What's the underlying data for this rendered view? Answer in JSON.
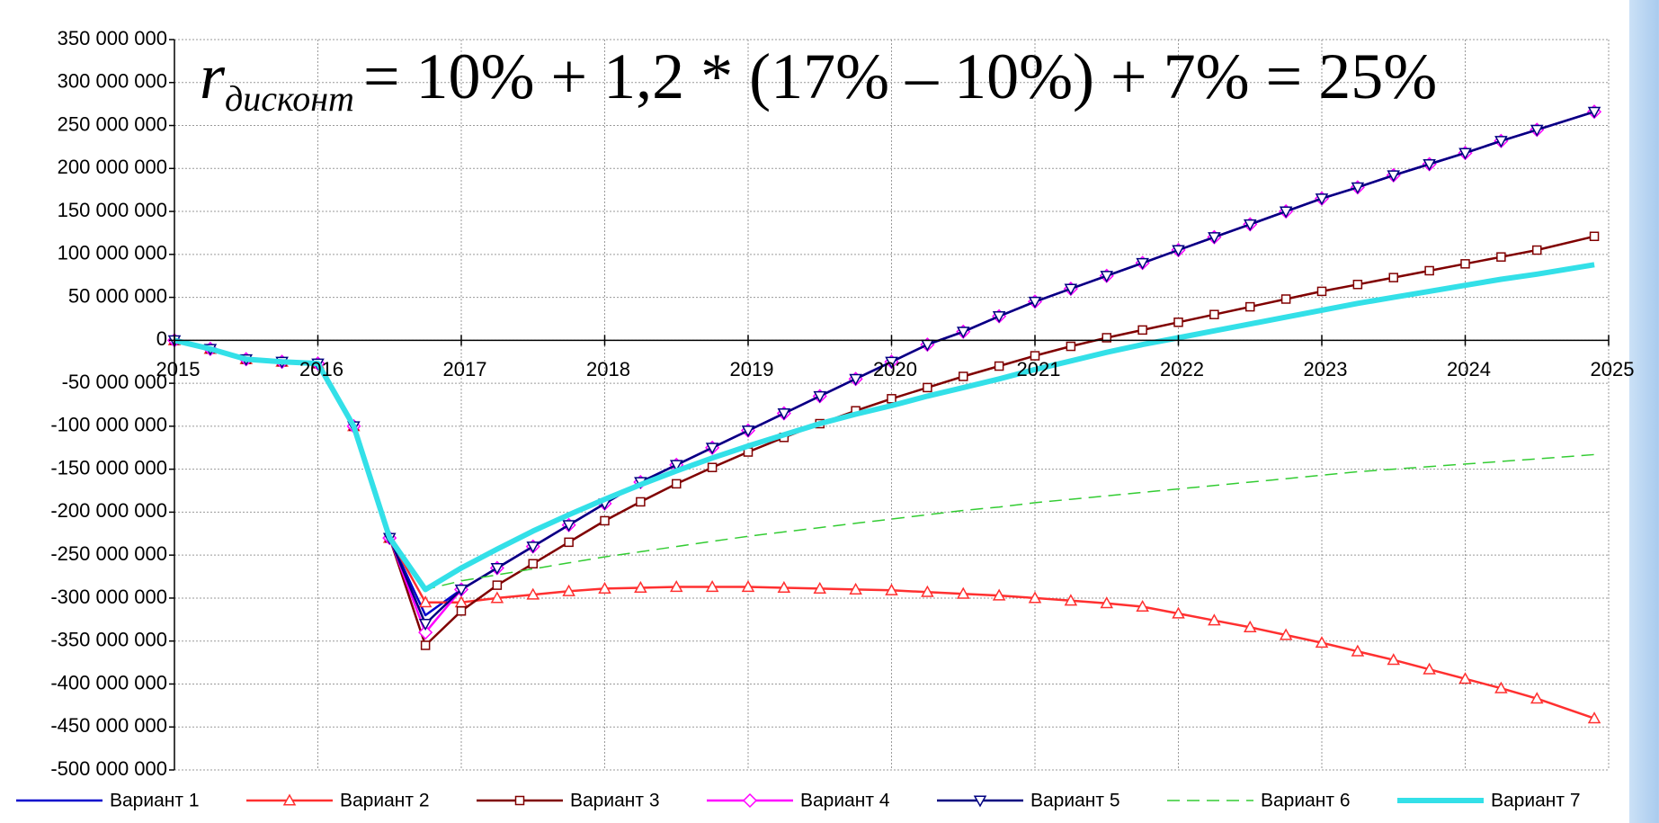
{
  "chart_data": {
    "type": "line",
    "annotations": [
      {
        "symbol": "r",
        "subscript": "дисконт",
        "text": "= 10% + 1,2 * (17% – 10%) + 7% = 25%"
      }
    ],
    "xlim": [
      2015,
      2025
    ],
    "xticks": [
      2015,
      2016,
      2017,
      2018,
      2019,
      2020,
      2021,
      2022,
      2023,
      2024,
      2025
    ],
    "ylim": [
      -500000000.0,
      350000000.0
    ],
    "yticks": [
      {
        "value": 350000000.0,
        "label": "350 000 000"
      },
      {
        "value": 300000000.0,
        "label": "300 000 000"
      },
      {
        "value": 250000000.0,
        "label": "250 000 000"
      },
      {
        "value": 200000000.0,
        "label": "200 000 000"
      },
      {
        "value": 150000000.0,
        "label": "150 000 000"
      },
      {
        "value": 100000000.0,
        "label": "100 000 000"
      },
      {
        "value": 50000000.0,
        "label": "50 000 000"
      },
      0,
      {
        "value": -50000000.0,
        "label": "-50 000 000"
      },
      {
        "value": -100000000.0,
        "label": "-100 000 000"
      },
      {
        "value": -150000000.0,
        "label": "-150 000 000"
      },
      {
        "value": -200000000.0,
        "label": "-200 000 000"
      },
      {
        "value": -250000000.0,
        "label": "-250 000 000"
      },
      {
        "value": -300000000.0,
        "label": "-300 000 000"
      },
      {
        "value": -350000000.0,
        "label": "-350 000 000"
      },
      {
        "value": -400000000.0,
        "label": "-400 000 000"
      },
      {
        "value": -450000000.0,
        "label": "-450 000 000"
      },
      {
        "value": -500000000.0,
        "label": "-500 000 000"
      }
    ],
    "grid": true,
    "legend": "bottom",
    "x": [
      2015,
      2015.25,
      2015.5,
      2015.75,
      2016,
      2016.25,
      2016.5,
      2016.75,
      2017,
      2017.25,
      2017.5,
      2017.75,
      2018,
      2018.25,
      2018.5,
      2018.75,
      2019,
      2019.25,
      2019.5,
      2019.75,
      2020,
      2020.25,
      2020.5,
      2020.75,
      2021,
      2021.25,
      2021.5,
      2021.75,
      2022,
      2022.25,
      2022.5,
      2022.75,
      2023,
      2023.25,
      2023.5,
      2023.75,
      2024,
      2024.25,
      2024.5,
      2024.9
    ],
    "series": [
      {
        "name": "Вариант 1",
        "color": "#0000cc",
        "marker": "none",
        "line_style": "solid",
        "values": [
          0,
          -10000000.0,
          -22000000.0,
          -25000000.0,
          -27000000.0,
          -100000000.0,
          -230000000.0,
          -320000000.0,
          -290000000.0,
          -265000000.0,
          -240000000.0,
          -215000000.0,
          -190000000.0,
          -165000000.0,
          -145000000.0,
          -125000000.0,
          -105000000.0,
          -85000000.0,
          -65000000.0,
          -45000000.0,
          -25000000.0,
          -5000000.0,
          10000000.0,
          28000000.0,
          45000000.0,
          60000000.0,
          75000000.0,
          90000000.0,
          105000000.0,
          120000000.0,
          135000000.0,
          150000000.0,
          165000000.0,
          178000000.0,
          192000000.0,
          205000000.0,
          218000000.0,
          232000000.0,
          245000000.0,
          266000000.0
        ]
      },
      {
        "name": "Вариант 2",
        "color": "#ff3030",
        "marker": "triangle-up",
        "line_style": "solid",
        "values": [
          0,
          -10000000.0,
          -22000000.0,
          -25000000.0,
          -27000000.0,
          -100000000.0,
          -230000000.0,
          -305000000.0,
          -305000000.0,
          -300000000.0,
          -296000000.0,
          -292000000.0,
          -289000000.0,
          -288000000.0,
          -287000000.0,
          -287000000.0,
          -287000000.0,
          -288000000.0,
          -289000000.0,
          -290000000.0,
          -291000000.0,
          -293000000.0,
          -295000000.0,
          -297000000.0,
          -300000000.0,
          -303000000.0,
          -306000000.0,
          -310000000.0,
          -318000000.0,
          -326000000.0,
          -334000000.0,
          -343000000.0,
          -352000000.0,
          -362000000.0,
          -372000000.0,
          -383000000.0,
          -394000000.0,
          -405000000.0,
          -417000000.0,
          -440000000.0
        ]
      },
      {
        "name": "Вариант 3",
        "color": "#800000",
        "marker": "square",
        "line_style": "solid",
        "values": [
          0,
          -10000000.0,
          -22000000.0,
          -25000000.0,
          -27000000.0,
          -100000000.0,
          -230000000.0,
          -355000000.0,
          -315000000.0,
          -285000000.0,
          -260000000.0,
          -235000000.0,
          -210000000.0,
          -188000000.0,
          -167000000.0,
          -148000000.0,
          -130000000.0,
          -113000000.0,
          -97000000.0,
          -82000000.0,
          -68000000.0,
          -55000000.0,
          -42000000.0,
          -30000000.0,
          -18000000.0,
          -7000000.0,
          3000000.0,
          12000000.0,
          21000000.0,
          30000000.0,
          39000000.0,
          48000000.0,
          57000000.0,
          65000000.0,
          73000000.0,
          81000000.0,
          89000000.0,
          97000000.0,
          105000000.0,
          121000000.0
        ]
      },
      {
        "name": "Вариант 4",
        "color": "#ff00ff",
        "marker": "diamond",
        "line_style": "solid",
        "values": [
          0,
          -10000000.0,
          -22000000.0,
          -25000000.0,
          -27000000.0,
          -100000000.0,
          -230000000.0,
          -340000000.0,
          -290000000.0,
          -265000000.0,
          -240000000.0,
          -215000000.0,
          -190000000.0,
          -165000000.0,
          -145000000.0,
          -125000000.0,
          -105000000.0,
          -85000000.0,
          -65000000.0,
          -45000000.0,
          -25000000.0,
          -5000000.0,
          10000000.0,
          28000000.0,
          45000000.0,
          60000000.0,
          75000000.0,
          90000000.0,
          105000000.0,
          120000000.0,
          135000000.0,
          150000000.0,
          165000000.0,
          178000000.0,
          192000000.0,
          205000000.0,
          218000000.0,
          232000000.0,
          245000000.0,
          266000000.0
        ]
      },
      {
        "name": "Вариант 5",
        "color": "#000080",
        "marker": "triangle-down",
        "line_style": "solid",
        "values": [
          0,
          -10000000.0,
          -22000000.0,
          -25000000.0,
          -27000000.0,
          -100000000.0,
          -230000000.0,
          -330000000.0,
          -290000000.0,
          -265000000.0,
          -240000000.0,
          -215000000.0,
          -190000000.0,
          -165000000.0,
          -145000000.0,
          -125000000.0,
          -105000000.0,
          -85000000.0,
          -65000000.0,
          -45000000.0,
          -25000000.0,
          -5000000.0,
          10000000.0,
          28000000.0,
          45000000.0,
          60000000.0,
          75000000.0,
          90000000.0,
          105000000.0,
          120000000.0,
          135000000.0,
          150000000.0,
          165000000.0,
          178000000.0,
          192000000.0,
          205000000.0,
          218000000.0,
          232000000.0,
          245000000.0,
          266000000.0
        ]
      },
      {
        "name": "Вариант 6",
        "color": "#33cc33",
        "marker": "none",
        "line_style": "dashed",
        "values": [
          0,
          -10000000.0,
          -22000000.0,
          -25000000.0,
          -27000000.0,
          -100000000.0,
          -230000000.0,
          -290000000.0,
          -280000000.0,
          -273000000.0,
          -266000000.0,
          -259000000.0,
          -252000000.0,
          -246000000.0,
          -240000000.0,
          -234000000.0,
          -228000000.0,
          -223000000.0,
          -218000000.0,
          -213000000.0,
          -208000000.0,
          -203000000.0,
          -198000000.0,
          -194000000.0,
          -189000000.0,
          -185000000.0,
          -181000000.0,
          -177000000.0,
          -173000000.0,
          -169000000.0,
          -165000000.0,
          -161000000.0,
          -157000000.0,
          -153000000.0,
          -150000000.0,
          -147000000.0,
          -144000000.0,
          -141000000.0,
          -138000000.0,
          -133000000.0
        ]
      },
      {
        "name": "Вариант 7",
        "color": "#33e0e8",
        "marker": "none",
        "line_style": "thick",
        "values": [
          0,
          -10000000.0,
          -22000000.0,
          -25000000.0,
          -27000000.0,
          -100000000.0,
          -230000000.0,
          -290000000.0,
          -265000000.0,
          -243000000.0,
          -222000000.0,
          -203000000.0,
          -185000000.0,
          -168000000.0,
          -152000000.0,
          -137000000.0,
          -123000000.0,
          -110000000.0,
          -97000000.0,
          -86000000.0,
          -76000000.0,
          -65000000.0,
          -55000000.0,
          -45000000.0,
          -34000000.0,
          -24000000.0,
          -14000000.0,
          -5000000.0,
          3000000.0,
          11000000.0,
          19000000.0,
          27000000.0,
          35000000.0,
          43000000.0,
          50000000.0,
          57000000.0,
          64000000.0,
          71000000.0,
          77000000.0,
          88000000.0
        ]
      }
    ]
  }
}
